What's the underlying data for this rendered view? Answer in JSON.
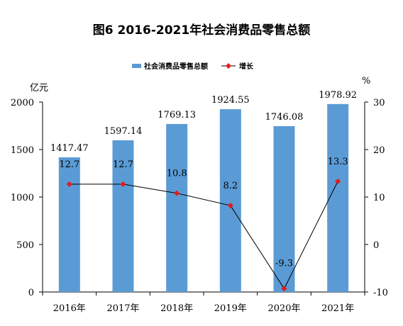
{
  "chart_data": {
    "type": "bar",
    "title": "图6   2016-2021年社会消费品零售总额",
    "categories": [
      "2016年",
      "2017年",
      "2018年",
      "2019年",
      "2020年",
      "2021年"
    ],
    "series": [
      {
        "name": "社会消费品零售总额",
        "type": "bar",
        "axis": "left",
        "values": [
          1417.47,
          1597.14,
          1769.13,
          1924.55,
          1746.08,
          1978.92
        ],
        "labels": [
          "1417.47",
          "1597.14",
          "1769.13",
          "1924.55",
          "1746.08",
          "1978.92"
        ],
        "color": "#5b9bd5"
      },
      {
        "name": "增长",
        "type": "line",
        "axis": "right",
        "values": [
          12.7,
          12.7,
          10.8,
          8.2,
          -9.3,
          13.3
        ],
        "labels": [
          "12.7",
          "12.7",
          "10.8",
          "8.2",
          "-9.3",
          "13.3"
        ],
        "color": "#000000",
        "marker_color": "#e41a1c"
      }
    ],
    "y_left": {
      "unit": "亿元",
      "range": [
        0,
        2000
      ],
      "ticks": [
        "0",
        "500",
        "1000",
        "1500",
        "2000"
      ]
    },
    "y_right": {
      "unit": "%",
      "range": [
        -10,
        30
      ],
      "ticks": [
        "-10",
        "0",
        "10",
        "20",
        "30"
      ]
    },
    "legend": "top-right",
    "grid": false
  }
}
